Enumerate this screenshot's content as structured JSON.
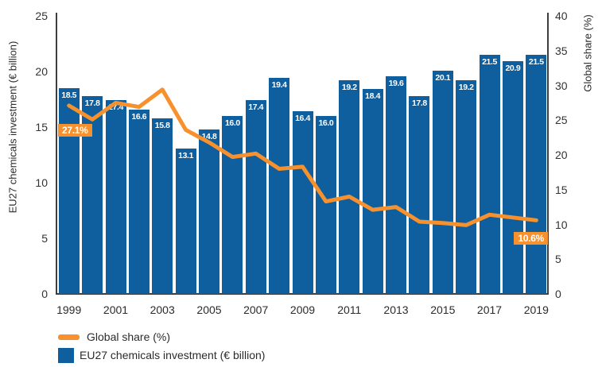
{
  "chart_data": {
    "type": "bar",
    "title": "",
    "categories": [
      1999,
      2000,
      2001,
      2002,
      2003,
      2004,
      2005,
      2006,
      2007,
      2008,
      2009,
      2010,
      2011,
      2012,
      2013,
      2014,
      2015,
      2016,
      2017,
      2018,
      2019
    ],
    "series": [
      {
        "name": "EU27 chemicals investment (€ billion)",
        "type": "bar",
        "axis": "left",
        "color": "#0F5E9E",
        "values": [
          18.5,
          17.8,
          17.4,
          16.6,
          15.8,
          13.1,
          14.8,
          16.0,
          17.4,
          19.4,
          16.4,
          16.0,
          19.2,
          18.4,
          19.6,
          17.8,
          20.1,
          19.2,
          21.5,
          20.9,
          21.5
        ]
      },
      {
        "name": "Global share (%)",
        "type": "line",
        "axis": "right",
        "color": "#F6912E",
        "values": [
          27.1,
          25.1,
          27.5,
          26.9,
          29.4,
          23.6,
          21.8,
          19.7,
          20.2,
          18.0,
          18.3,
          13.3,
          14.0,
          12.1,
          12.5,
          10.4,
          10.2,
          9.9,
          11.4,
          11.0,
          10.6
        ]
      }
    ],
    "left_axis": {
      "title": "EU27 chemicals investment (€ billion)",
      "max": 25,
      "ticks": [
        0,
        5,
        10,
        15,
        20,
        25
      ]
    },
    "right_axis": {
      "title": "Global share (%)",
      "max": 40,
      "ticks": [
        0,
        5,
        10,
        15,
        20,
        25,
        30,
        35,
        40
      ]
    },
    "x_tick_labels": [
      "1999",
      "2001",
      "2003",
      "2005",
      "2007",
      "2009",
      "2011",
      "2013",
      "2015",
      "2017",
      "2019"
    ],
    "annotations": [
      {
        "text": "27.1%",
        "index": 0,
        "align": "left"
      },
      {
        "text": "10.6%",
        "index": 20,
        "align": "right"
      }
    ],
    "grid": false,
    "legend_position": "bottom-left"
  },
  "legend": {
    "items": [
      {
        "label": "Global share (%)",
        "color": "#F6912E",
        "shape": "line"
      },
      {
        "label": "EU27 chemicals investment (€ billion)",
        "color": "#0F5E9E",
        "shape": "square"
      }
    ]
  }
}
